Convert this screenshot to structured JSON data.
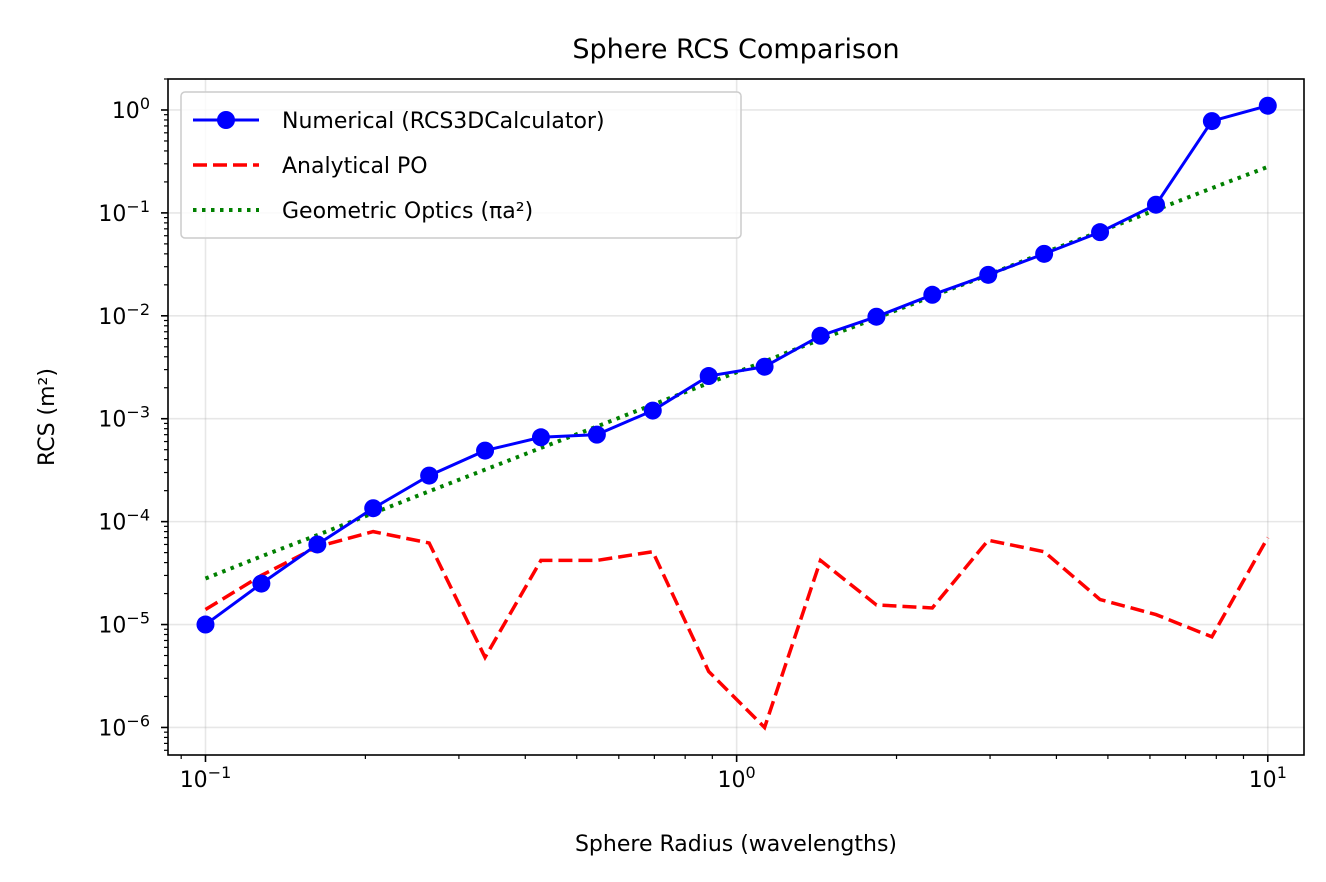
{
  "chart_data": {
    "type": "line",
    "title": "Sphere RCS Comparison",
    "xlabel": "Sphere Radius (wavelengths)",
    "ylabel": "RCS (m²)",
    "xscale": "log",
    "yscale": "log",
    "xlim": [
      0.085,
      11.7
    ],
    "ylim": [
      5.4e-07,
      2.0
    ],
    "grid": true,
    "legend_position": "top-left",
    "x_ticks": [
      {
        "value": 0.1,
        "base": "10",
        "exp": "−1"
      },
      {
        "value": 1,
        "base": "10",
        "exp": "0"
      },
      {
        "value": 10,
        "base": "10",
        "exp": "1"
      }
    ],
    "y_ticks": [
      {
        "value": 1e-06,
        "base": "10",
        "exp": "−6"
      },
      {
        "value": 1e-05,
        "base": "10",
        "exp": "−5"
      },
      {
        "value": 0.0001,
        "base": "10",
        "exp": "−4"
      },
      {
        "value": 0.001,
        "base": "10",
        "exp": "−3"
      },
      {
        "value": 0.01,
        "base": "10",
        "exp": "−2"
      },
      {
        "value": 0.1,
        "base": "10",
        "exp": "−1"
      },
      {
        "value": 1,
        "base": "10",
        "exp": "0"
      }
    ],
    "x": [
      0.1,
      0.1274,
      0.1624,
      0.2069,
      0.2637,
      0.336,
      0.4281,
      0.5456,
      0.6952,
      0.8859,
      1.1288,
      1.4384,
      1.833,
      2.3357,
      2.9764,
      3.7927,
      4.8329,
      6.1585,
      7.8476,
      10.0
    ],
    "series": [
      {
        "name": "Numerical (RCS3DCalculator)",
        "color": "#0000ff",
        "style": "solid-markers",
        "values": [
          1e-05,
          2.5e-05,
          6e-05,
          0.000135,
          0.00028,
          0.00049,
          0.00066,
          0.0007,
          0.0012,
          0.0026,
          0.0032,
          0.0064,
          0.0098,
          0.016,
          0.025,
          0.04,
          0.065,
          0.12,
          0.78,
          1.1
        ]
      },
      {
        "name": "Analytical PO",
        "color": "#ff0000",
        "style": "dashed",
        "values": [
          1.4e-05,
          3e-05,
          5.7e-05,
          8e-05,
          6.2e-05,
          4.8e-06,
          4.2e-05,
          4.2e-05,
          5.1e-05,
          3.5e-06,
          1e-06,
          4.2e-05,
          1.55e-05,
          1.45e-05,
          6.6e-05,
          5.1e-05,
          1.75e-05,
          1.25e-05,
          7.6e-06,
          7e-05
        ]
      },
      {
        "name": "Geometric Optics (πa²)",
        "color": "#008000",
        "style": "dotted",
        "values": [
          2.8e-05,
          4.6e-05,
          7.4e-05,
          0.000121,
          0.000197,
          0.00032,
          0.00052,
          0.00084,
          0.00137,
          0.00222,
          0.0036,
          0.0059,
          0.0095,
          0.0155,
          0.025,
          0.041,
          0.066,
          0.107,
          0.174,
          0.28
        ]
      }
    ]
  }
}
